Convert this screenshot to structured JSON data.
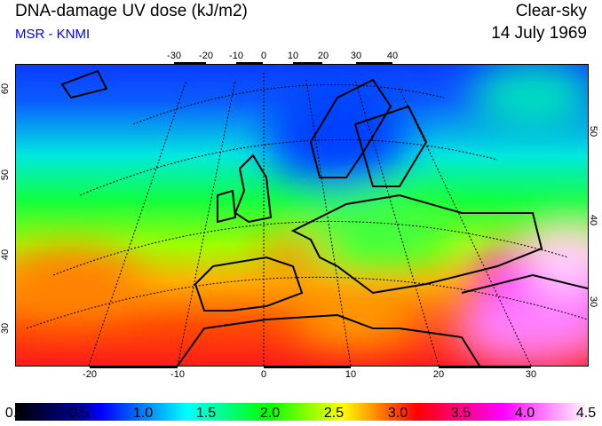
{
  "header": {
    "title": "DNA-damage UV dose (kJ/m2)",
    "source": "MSR - KNMI",
    "condition": "Clear-sky",
    "date": "14 July 1969"
  },
  "map": {
    "top_lon_ticks": [
      "-30",
      "-20",
      "-10",
      "0",
      "10",
      "20",
      "30",
      "40"
    ],
    "bottom_lon_ticks": [
      "-20",
      "-10",
      "0",
      "10",
      "20",
      "30"
    ],
    "left_lat_ticks": [
      "60",
      "50",
      "40",
      "30"
    ],
    "right_lat_ticks": [
      "50",
      "40",
      "30"
    ]
  },
  "colorbar": {
    "ticks": [
      "0.0",
      "0.5",
      "1.0",
      "1.5",
      "2.0",
      "2.5",
      "3.0",
      "3.5",
      "4.0",
      "4.5"
    ],
    "colors": [
      "#000000",
      "#0000ff",
      "#00b0ff",
      "#00ffff",
      "#00ff00",
      "#ffff00",
      "#ff8000",
      "#ff0000",
      "#ff00ff",
      "#ffffff"
    ]
  }
}
